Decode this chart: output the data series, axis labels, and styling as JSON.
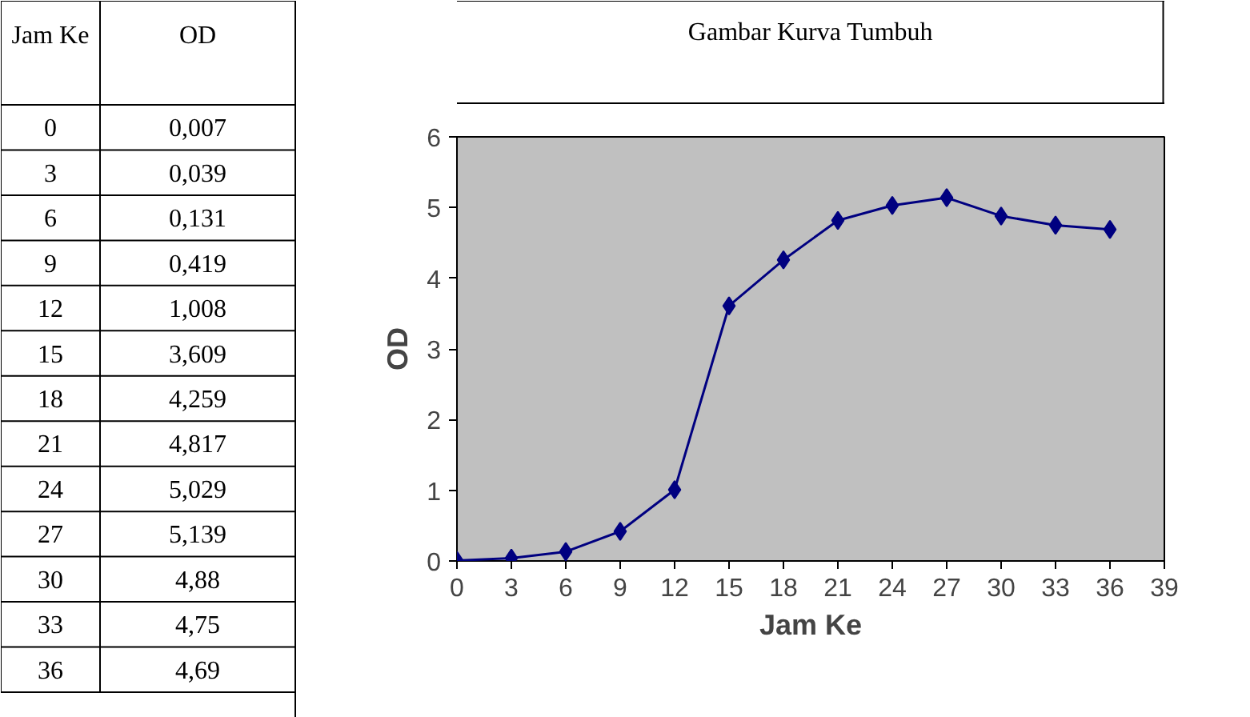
{
  "chart_data": {
    "type": "line",
    "title": "Gambar Kurva Tumbuh",
    "xlabel": "Jam Ke",
    "ylabel": "OD",
    "annotations": [
      "0",
      "0,007",
      "3",
      "0,039",
      "6",
      "0,131",
      "9",
      "0,419",
      "12",
      "1,008",
      "15",
      "3,609",
      "18",
      "4,259",
      "21",
      "4,817",
      "24",
      "5,029",
      "27",
      "5,139",
      "30",
      "4,88",
      "33",
      "4,75",
      "36",
      "4,69"
    ],
    "x": [
      0,
      3,
      6,
      9,
      12,
      15,
      18,
      21,
      24,
      27,
      30,
      33,
      36
    ],
    "series": [
      {
        "color": "#000080",
        "values": [
          0.007,
          0.039,
          0.131,
          0.419,
          1.008,
          3.609,
          4.259,
          4.817,
          5.029,
          5.139,
          4.88,
          4.75,
          4.69
        ]
      }
    ],
    "xlim": [
      0,
      39
    ],
    "xticks": [
      0,
      3,
      6,
      9,
      12,
      15,
      18,
      21,
      24,
      27,
      30,
      33,
      36,
      39
    ],
    "ylim": [
      0,
      6
    ],
    "yticks": [
      0,
      1,
      2,
      3,
      4,
      5,
      6
    ],
    "grid": false,
    "legend": false,
    "marker": "diamond",
    "line_style": "solid"
  }
}
